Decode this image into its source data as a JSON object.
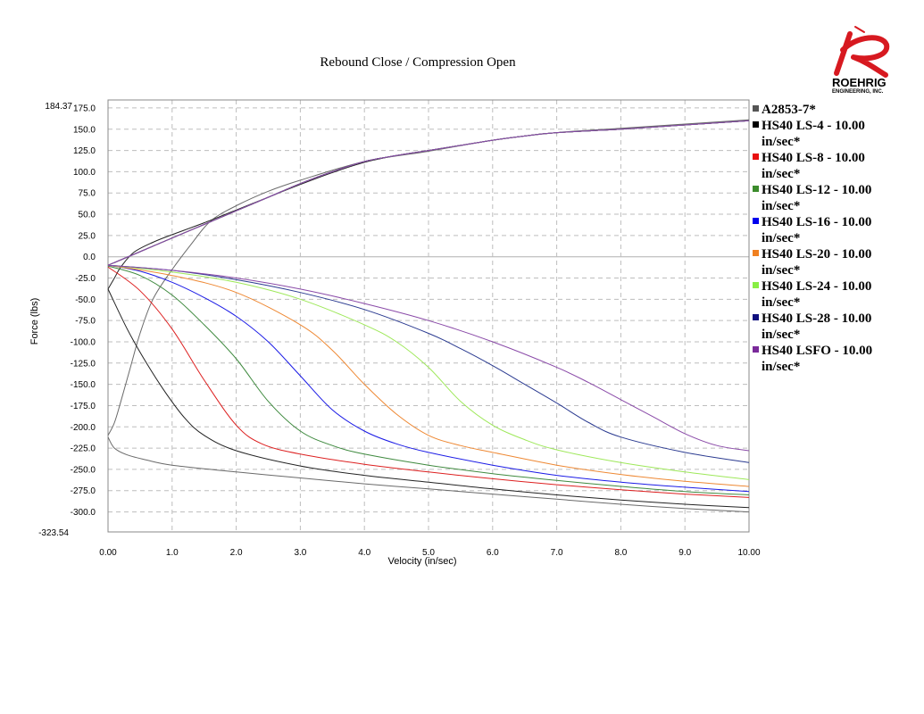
{
  "logo": {
    "word": "ROEHRIG",
    "sub": "ENGINEERING, INC.",
    "color": "#d71920"
  },
  "chart_data": {
    "type": "line",
    "title": "Rebound Close / Compression Open",
    "xlabel": "Velocity (in/sec)",
    "ylabel": "Force (lbs)",
    "xlim": [
      0,
      10
    ],
    "ylim": [
      -323.54,
      184.37
    ],
    "ymax_label": "184.37",
    "ymin_label": "-323.54",
    "xticks": [
      0,
      1,
      2,
      3,
      4,
      5,
      6,
      7,
      8,
      9,
      10
    ],
    "xtick_labels": [
      "0.00",
      "1.0",
      "2.0",
      "3.0",
      "4.0",
      "5.0",
      "6.0",
      "7.0",
      "8.0",
      "9.0",
      "10.00"
    ],
    "yticks": [
      175,
      150,
      125,
      100,
      75,
      50,
      25,
      0,
      -25,
      -50,
      -75,
      -100,
      -125,
      -150,
      -175,
      -200,
      -225,
      -250,
      -275,
      -300
    ],
    "ytick_labels": [
      "175.0",
      "150.0",
      "125.0",
      "100.0",
      "75.0",
      "50.0",
      "25.0",
      "0.0",
      "-25.0",
      "-50.0",
      "-75.0",
      "-100.0",
      "-125.0",
      "-150.0",
      "-175.0",
      "-200.0",
      "-225.0",
      "-250.0",
      "-275.0",
      "-300.0"
    ],
    "grid": true,
    "legend_position": "right",
    "series": [
      {
        "name": "A2853-7*",
        "color": "#6a6a6a",
        "legend_color": "#555555",
        "rebound": [
          [
            0,
            -212
          ],
          [
            0.1,
            -225
          ],
          [
            0.3,
            -233
          ],
          [
            0.6,
            -239
          ],
          [
            1,
            -245
          ],
          [
            2,
            -253
          ],
          [
            3,
            -260
          ],
          [
            4,
            -267
          ],
          [
            5,
            -273
          ],
          [
            6,
            -279
          ],
          [
            7,
            -285
          ],
          [
            8,
            -291
          ],
          [
            9,
            -296
          ],
          [
            10,
            -300
          ]
        ],
        "compression": [
          [
            0,
            -210
          ],
          [
            0.1,
            -195
          ],
          [
            0.2,
            -170
          ],
          [
            0.35,
            -130
          ],
          [
            0.5,
            -90
          ],
          [
            0.7,
            -50
          ],
          [
            1,
            -15
          ],
          [
            1.3,
            15
          ],
          [
            1.6,
            42
          ],
          [
            2,
            60
          ],
          [
            2.5,
            77
          ],
          [
            3,
            90
          ],
          [
            4,
            112
          ],
          [
            5,
            124
          ],
          [
            6,
            137
          ],
          [
            7,
            146
          ],
          [
            8,
            151
          ],
          [
            9,
            156
          ],
          [
            10,
            161
          ]
        ]
      },
      {
        "name": "HS40 LS-4 - 10.00 in/sec*",
        "color": "#222222",
        "legend_color": "#000000",
        "rebound": [
          [
            0,
            -38
          ],
          [
            0.3,
            -85
          ],
          [
            0.6,
            -125
          ],
          [
            0.9,
            -160
          ],
          [
            1.2,
            -190
          ],
          [
            1.5,
            -210
          ],
          [
            2,
            -228
          ],
          [
            3,
            -246
          ],
          [
            4,
            -257
          ],
          [
            5,
            -265
          ],
          [
            6,
            -273
          ],
          [
            7,
            -280
          ],
          [
            8,
            -286
          ],
          [
            9,
            -291
          ],
          [
            10,
            -295
          ]
        ],
        "compression": [
          [
            0,
            -38
          ],
          [
            0.1,
            -25
          ],
          [
            0.2,
            -12
          ],
          [
            0.4,
            5
          ],
          [
            0.7,
            17
          ],
          [
            1,
            26
          ],
          [
            1.5,
            40
          ],
          [
            2,
            55
          ],
          [
            2.5,
            70
          ],
          [
            3,
            85
          ],
          [
            3.5,
            99
          ],
          [
            4,
            111
          ],
          [
            4.5,
            119
          ],
          [
            5,
            125
          ],
          [
            5.5,
            131
          ],
          [
            6,
            137
          ],
          [
            6.5,
            142
          ],
          [
            7,
            146
          ],
          [
            8,
            150
          ],
          [
            9,
            155
          ],
          [
            10,
            160
          ]
        ]
      },
      {
        "name": "HS40 LS-8 - 10.00 in/sec*",
        "color": "#dd2020",
        "legend_color": "#e81010",
        "rebound": [
          [
            0,
            -12
          ],
          [
            0.5,
            -40
          ],
          [
            1,
            -85
          ],
          [
            1.5,
            -145
          ],
          [
            2,
            -198
          ],
          [
            2.4,
            -220
          ],
          [
            3,
            -232
          ],
          [
            4,
            -244
          ],
          [
            5,
            -253
          ],
          [
            6,
            -261
          ],
          [
            7,
            -268
          ],
          [
            8,
            -274
          ],
          [
            9,
            -279
          ],
          [
            10,
            -283
          ]
        ],
        "compression": [
          [
            0,
            -10
          ],
          [
            0.5,
            6
          ],
          [
            1,
            22
          ],
          [
            1.5,
            38
          ],
          [
            2,
            54
          ],
          [
            2.5,
            70
          ],
          [
            3,
            86
          ],
          [
            3.5,
            100
          ],
          [
            4,
            112
          ],
          [
            4.5,
            119
          ],
          [
            5,
            125
          ],
          [
            5.5,
            131
          ],
          [
            6,
            137
          ],
          [
            6.5,
            142
          ],
          [
            7,
            146
          ],
          [
            8,
            150
          ],
          [
            9,
            155
          ],
          [
            10,
            160
          ]
        ]
      },
      {
        "name": "HS40 LS-12 - 10.00 in/sec*",
        "color": "#3f8a3f",
        "legend_color": "#3c8c2c",
        "rebound": [
          [
            0,
            -11
          ],
          [
            0.5,
            -22
          ],
          [
            1,
            -45
          ],
          [
            1.5,
            -80
          ],
          [
            2,
            -120
          ],
          [
            2.5,
            -170
          ],
          [
            3,
            -205
          ],
          [
            3.5,
            -222
          ],
          [
            4,
            -232
          ],
          [
            5,
            -245
          ],
          [
            6,
            -255
          ],
          [
            7,
            -263
          ],
          [
            8,
            -270
          ],
          [
            9,
            -276
          ],
          [
            10,
            -280
          ]
        ],
        "compression": [
          [
            0,
            -10
          ],
          [
            0.5,
            6
          ],
          [
            1,
            22
          ],
          [
            1.5,
            38
          ],
          [
            2,
            54
          ],
          [
            2.5,
            70
          ],
          [
            3,
            86
          ],
          [
            3.5,
            100
          ],
          [
            4,
            112
          ],
          [
            4.5,
            119
          ],
          [
            5,
            125
          ],
          [
            5.5,
            131
          ],
          [
            6,
            137
          ],
          [
            6.5,
            142
          ],
          [
            7,
            146
          ],
          [
            8,
            150
          ],
          [
            9,
            155
          ],
          [
            10,
            160
          ]
        ]
      },
      {
        "name": "HS40 LS-16 - 10.00 in/sec*",
        "color": "#1a1ae6",
        "legend_color": "#0000ee",
        "rebound": [
          [
            0,
            -10
          ],
          [
            0.5,
            -17
          ],
          [
            1,
            -30
          ],
          [
            1.5,
            -48
          ],
          [
            2,
            -70
          ],
          [
            2.5,
            -100
          ],
          [
            3,
            -140
          ],
          [
            3.5,
            -180
          ],
          [
            4,
            -205
          ],
          [
            4.5,
            -220
          ],
          [
            5,
            -230
          ],
          [
            6,
            -245
          ],
          [
            7,
            -257
          ],
          [
            8,
            -265
          ],
          [
            9,
            -271
          ],
          [
            10,
            -276
          ]
        ],
        "compression": [
          [
            0,
            -10
          ],
          [
            0.5,
            6
          ],
          [
            1,
            22
          ],
          [
            1.5,
            38
          ],
          [
            2,
            54
          ],
          [
            2.5,
            70
          ],
          [
            3,
            86
          ],
          [
            3.5,
            100
          ],
          [
            4,
            112
          ],
          [
            4.5,
            119
          ],
          [
            5,
            125
          ],
          [
            5.5,
            131
          ],
          [
            6,
            137
          ],
          [
            6.5,
            142
          ],
          [
            7,
            146
          ],
          [
            8,
            150
          ],
          [
            9,
            155
          ],
          [
            10,
            160
          ]
        ]
      },
      {
        "name": "HS40 LS-20 - 10.00 in/sec*",
        "color": "#ee8833",
        "legend_color": "#f08020",
        "rebound": [
          [
            0,
            -10
          ],
          [
            1,
            -22
          ],
          [
            2,
            -42
          ],
          [
            3,
            -80
          ],
          [
            3.5,
            -110
          ],
          [
            4,
            -150
          ],
          [
            4.5,
            -185
          ],
          [
            5,
            -210
          ],
          [
            5.5,
            -222
          ],
          [
            6,
            -230
          ],
          [
            7,
            -245
          ],
          [
            8,
            -256
          ],
          [
            9,
            -264
          ],
          [
            10,
            -270
          ]
        ],
        "compression": [
          [
            0,
            -10
          ],
          [
            0.5,
            6
          ],
          [
            1,
            22
          ],
          [
            1.5,
            38
          ],
          [
            2,
            54
          ],
          [
            2.5,
            70
          ],
          [
            3,
            86
          ],
          [
            3.5,
            100
          ],
          [
            4,
            112
          ],
          [
            4.5,
            119
          ],
          [
            5,
            125
          ],
          [
            5.5,
            131
          ],
          [
            6,
            137
          ],
          [
            6.5,
            142
          ],
          [
            7,
            146
          ],
          [
            8,
            150
          ],
          [
            9,
            155
          ],
          [
            10,
            160
          ]
        ]
      },
      {
        "name": "HS40 LS-24 - 10.00 in/sec*",
        "color": "#9ee85a",
        "legend_color": "#88ee44",
        "rebound": [
          [
            0,
            -10
          ],
          [
            1,
            -18
          ],
          [
            2,
            -30
          ],
          [
            3,
            -50
          ],
          [
            4,
            -80
          ],
          [
            4.5,
            -100
          ],
          [
            5,
            -130
          ],
          [
            5.5,
            -170
          ],
          [
            6,
            -198
          ],
          [
            6.5,
            -215
          ],
          [
            7,
            -227
          ],
          [
            8,
            -242
          ],
          [
            9,
            -253
          ],
          [
            10,
            -262
          ]
        ],
        "compression": [
          [
            0,
            -10
          ],
          [
            0.5,
            6
          ],
          [
            1,
            22
          ],
          [
            1.5,
            38
          ],
          [
            2,
            54
          ],
          [
            2.5,
            70
          ],
          [
            3,
            86
          ],
          [
            3.5,
            100
          ],
          [
            4,
            112
          ],
          [
            4.5,
            119
          ],
          [
            5,
            125
          ],
          [
            5.5,
            131
          ],
          [
            6,
            137
          ],
          [
            6.5,
            142
          ],
          [
            7,
            146
          ],
          [
            8,
            150
          ],
          [
            9,
            155
          ],
          [
            10,
            160
          ]
        ]
      },
      {
        "name": "HS40 LS-28 - 10.00 in/sec*",
        "color": "#2a3a90",
        "legend_color": "#10107e",
        "rebound": [
          [
            0,
            -10
          ],
          [
            1,
            -16
          ],
          [
            2,
            -27
          ],
          [
            3,
            -42
          ],
          [
            4,
            -62
          ],
          [
            5,
            -90
          ],
          [
            5.5,
            -108
          ],
          [
            6,
            -128
          ],
          [
            6.5,
            -150
          ],
          [
            7,
            -172
          ],
          [
            7.5,
            -195
          ],
          [
            8,
            -212
          ],
          [
            9,
            -230
          ],
          [
            10,
            -242
          ]
        ],
        "compression": [
          [
            0,
            -10
          ],
          [
            0.5,
            6
          ],
          [
            1,
            22
          ],
          [
            1.5,
            38
          ],
          [
            2,
            54
          ],
          [
            2.5,
            70
          ],
          [
            3,
            86
          ],
          [
            3.5,
            100
          ],
          [
            4,
            112
          ],
          [
            4.5,
            119
          ],
          [
            5,
            125
          ],
          [
            5.5,
            131
          ],
          [
            6,
            137
          ],
          [
            6.5,
            142
          ],
          [
            7,
            146
          ],
          [
            8,
            150
          ],
          [
            9,
            155
          ],
          [
            10,
            160
          ]
        ]
      },
      {
        "name": "HS40 LSFO - 10.00 in/sec*",
        "color": "#8a4aa8",
        "legend_color": "#7a2a9a",
        "rebound": [
          [
            0,
            -10
          ],
          [
            1,
            -16
          ],
          [
            2,
            -25
          ],
          [
            3,
            -38
          ],
          [
            4,
            -55
          ],
          [
            5,
            -75
          ],
          [
            6,
            -100
          ],
          [
            7,
            -130
          ],
          [
            7.5,
            -148
          ],
          [
            8,
            -168
          ],
          [
            8.5,
            -188
          ],
          [
            9,
            -208
          ],
          [
            9.5,
            -222
          ],
          [
            10,
            -228
          ]
        ],
        "compression": [
          [
            0,
            -10
          ],
          [
            0.5,
            6
          ],
          [
            1,
            22
          ],
          [
            1.5,
            38
          ],
          [
            2,
            54
          ],
          [
            2.5,
            70
          ],
          [
            3,
            86
          ],
          [
            3.5,
            100
          ],
          [
            4,
            112
          ],
          [
            4.5,
            119
          ],
          [
            5,
            125
          ],
          [
            5.5,
            131
          ],
          [
            6,
            137
          ],
          [
            6.5,
            142
          ],
          [
            7,
            146
          ],
          [
            8,
            150
          ],
          [
            9,
            155
          ],
          [
            10,
            160
          ]
        ]
      }
    ]
  }
}
